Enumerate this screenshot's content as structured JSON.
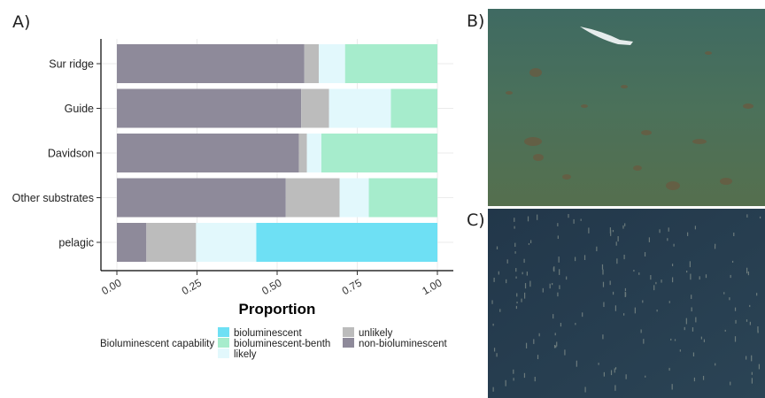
{
  "panels": {
    "a": "A)",
    "b": "B)",
    "c": "C)"
  },
  "chart_data": {
    "type": "bar",
    "orientation": "horizontal",
    "stacked": true,
    "categories": [
      "Sur ridge",
      "Guide",
      "Davidson",
      "Other substrates",
      "pelagic"
    ],
    "series": [
      {
        "name": "non-bioluminescent",
        "color": "#8e8a9a",
        "values": [
          0.585,
          0.575,
          0.568,
          0.527,
          0.092
        ]
      },
      {
        "name": "unlikely",
        "color": "#bcbcbc",
        "values": [
          0.045,
          0.087,
          0.025,
          0.168,
          0.155
        ]
      },
      {
        "name": "likely",
        "color": "#e2f8fc",
        "values": [
          0.082,
          0.193,
          0.045,
          0.091,
          0.188
        ]
      },
      {
        "name": "bioluminescent-benth",
        "color": "#a6eccc",
        "values": [
          0.288,
          0.145,
          0.362,
          0.214,
          0.0
        ]
      },
      {
        "name": "bioluminescent",
        "color": "#6ee0f4",
        "values": [
          0.0,
          0.0,
          0.0,
          0.0,
          0.565
        ]
      }
    ],
    "xlabel": "Proportion",
    "ylabel": "",
    "xlim": [
      0,
      1
    ],
    "xticks": [
      "0.00",
      "0.25",
      "0.50",
      "0.75",
      "1.00"
    ],
    "grid": true,
    "legend": {
      "title": "Bioluminescent capability",
      "position": "bottom",
      "entries": [
        "bioluminescent",
        "bioluminescent-benth",
        "likely",
        "unlikely",
        "non-bioluminescent"
      ]
    }
  },
  "photos": {
    "b_description": "seafloor",
    "c_description": "pelagic"
  }
}
